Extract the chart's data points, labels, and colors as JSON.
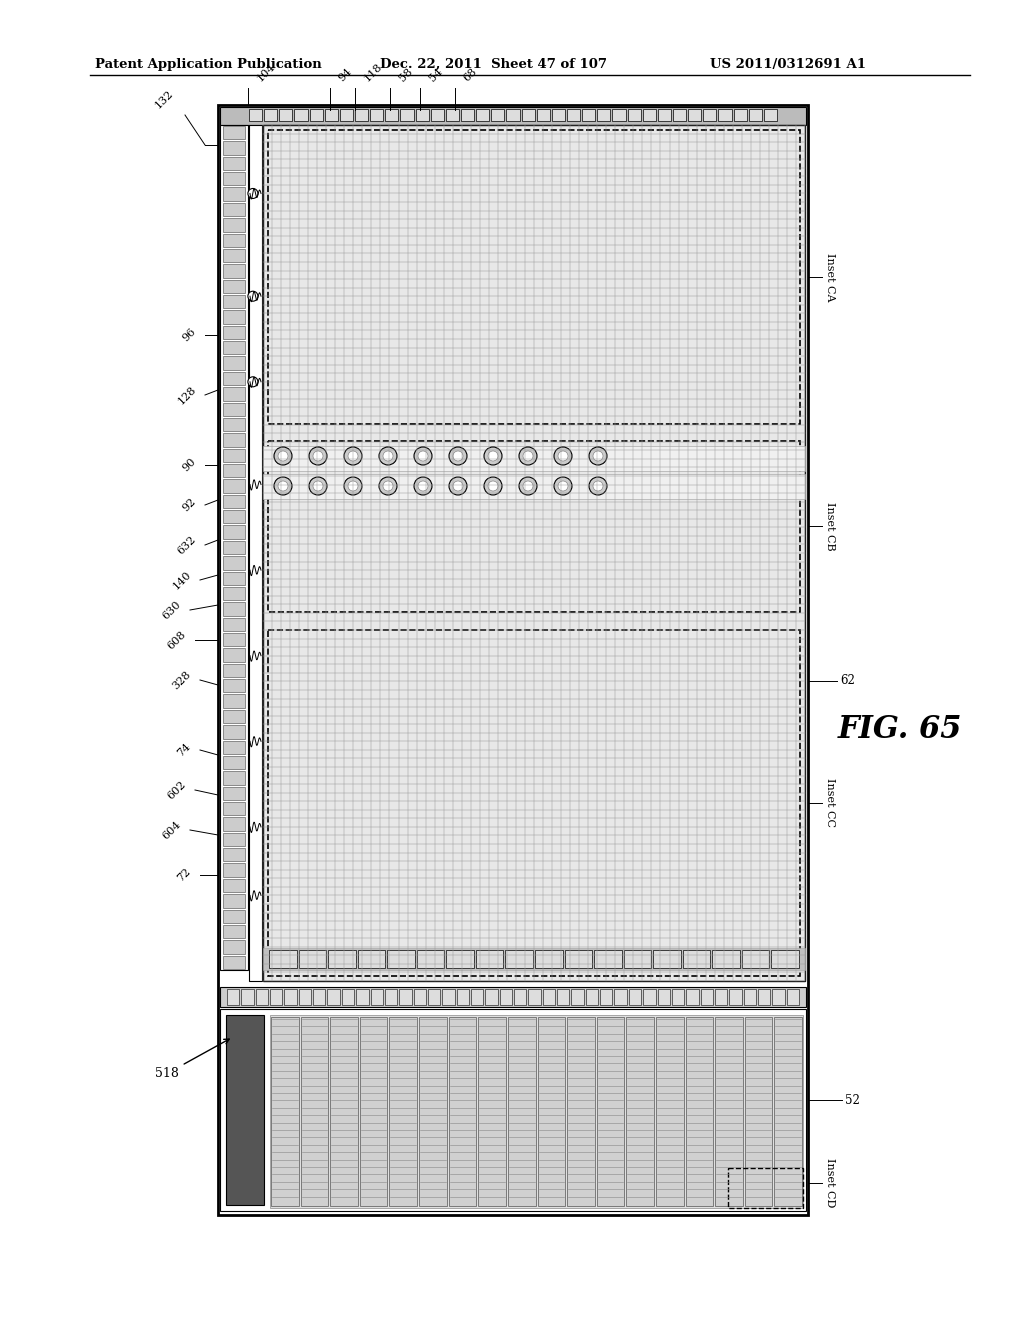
{
  "bg_color": "#ffffff",
  "title_line1": "Patent Application Publication",
  "title_line2": "Dec. 22, 2011  Sheet 47 of 107",
  "title_line3": "US 2011/0312691 A1",
  "fig_label": "FIG. 65",
  "main_color": "#000000",
  "grid_fg": "#999999",
  "grid_bg": "#d8d8d8",
  "strip_bg": "#e0e0e0",
  "dark_gray": "#555555",
  "mid_gray": "#888888"
}
